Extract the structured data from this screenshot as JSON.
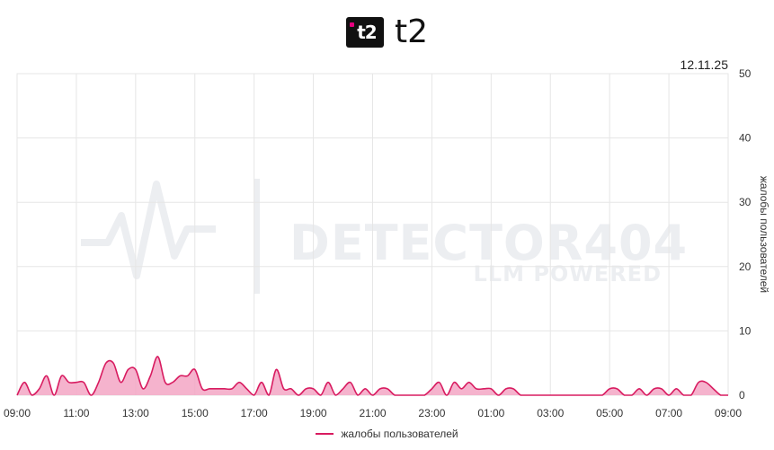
{
  "header": {
    "brand": "t2",
    "logo_icon": "t2-logo-icon"
  },
  "date": "12.11.25",
  "watermark": {
    "title": "DETECTOR404",
    "subtitle": "LLM POWERED"
  },
  "colors": {
    "series": "#d81b60",
    "fill": "#f3a6c4",
    "grid": "#e6e6e6"
  },
  "chart_data": {
    "type": "area",
    "title": "",
    "xlabel": "",
    "ylabel": "жалобы пользователей",
    "ylim": [
      0,
      50
    ],
    "y_ticks": [
      0,
      10,
      20,
      30,
      40,
      50
    ],
    "x_tick_labels": [
      "09:00",
      "11:00",
      "13:00",
      "15:00",
      "17:00",
      "19:00",
      "21:00",
      "23:00",
      "01:00",
      "03:00",
      "05:00",
      "07:00",
      "09:00"
    ],
    "grid": true,
    "legend": "bottom",
    "series": [
      {
        "name": "жалобы пользователей",
        "x": [
          "09:00",
          "09:15",
          "09:30",
          "09:45",
          "10:00",
          "10:15",
          "10:30",
          "10:45",
          "11:00",
          "11:15",
          "11:30",
          "11:45",
          "12:00",
          "12:15",
          "12:30",
          "12:45",
          "13:00",
          "13:15",
          "13:30",
          "13:45",
          "14:00",
          "14:15",
          "14:30",
          "14:45",
          "15:00",
          "15:15",
          "15:30",
          "15:45",
          "16:00",
          "16:15",
          "16:30",
          "16:45",
          "17:00",
          "17:15",
          "17:30",
          "17:45",
          "18:00",
          "18:15",
          "18:30",
          "18:45",
          "19:00",
          "19:15",
          "19:30",
          "19:45",
          "20:00",
          "20:15",
          "20:30",
          "20:45",
          "21:00",
          "21:15",
          "21:30",
          "21:45",
          "22:00",
          "22:15",
          "22:30",
          "22:45",
          "23:00",
          "23:15",
          "23:30",
          "23:45",
          "00:00",
          "00:15",
          "00:30",
          "00:45",
          "01:00",
          "01:15",
          "01:30",
          "01:45",
          "02:00",
          "02:15",
          "02:30",
          "02:45",
          "03:00",
          "03:15",
          "03:30",
          "03:45",
          "04:00",
          "04:15",
          "04:30",
          "04:45",
          "05:00",
          "05:15",
          "05:30",
          "05:45",
          "06:00",
          "06:15",
          "06:30",
          "06:45",
          "07:00",
          "07:15",
          "07:30",
          "07:45",
          "08:00",
          "08:15",
          "08:30",
          "08:45",
          "09:00"
        ],
        "values": [
          0,
          2,
          0,
          1,
          3,
          0,
          3,
          2,
          2,
          2,
          0,
          2,
          5,
          5,
          2,
          4,
          4,
          1,
          3,
          6,
          2,
          2,
          3,
          3,
          4,
          1,
          1,
          1,
          1,
          1,
          2,
          1,
          0,
          2,
          0,
          4,
          1,
          1,
          0,
          1,
          1,
          0,
          2,
          0,
          1,
          2,
          0,
          1,
          0,
          1,
          1,
          0,
          0,
          0,
          0,
          0,
          1,
          2,
          0,
          2,
          1,
          2,
          1,
          1,
          1,
          0,
          1,
          1,
          0,
          0,
          0,
          0,
          0,
          0,
          0,
          0,
          0,
          0,
          0,
          0,
          1,
          1,
          0,
          0,
          1,
          0,
          1,
          1,
          0,
          1,
          0,
          0,
          2,
          2,
          1,
          0,
          0
        ]
      }
    ]
  }
}
